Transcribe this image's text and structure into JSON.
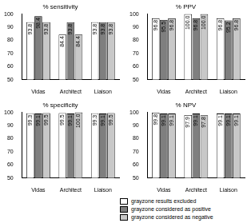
{
  "chart_data": [
    {
      "type": "bar",
      "title": "% sensitivity",
      "categories": [
        "Vidas",
        "Architect",
        "Liaison"
      ],
      "series": [
        {
          "name": "grayzone results excluded",
          "color": "#ffffff",
          "values": [
            93.8,
            84.4,
            93.8
          ],
          "value_labels": [
            "93.8",
            "84.4",
            "93.8"
          ]
        },
        {
          "name": "grayzone considered as positive",
          "color": "#7f7f7f",
          "values": [
            98.4,
            93.8,
            93.8
          ],
          "value_labels": [
            "98.4",
            "93.8",
            "93.8"
          ]
        },
        {
          "name": "grayzone considered as negative",
          "color": "#c8c8c8",
          "values": [
            93.8,
            84.4,
            93.8
          ],
          "value_labels": [
            "93.8",
            "84.4",
            "93.8"
          ]
        }
      ],
      "ylim": [
        50,
        100
      ],
      "yticks": [
        50,
        60,
        70,
        80,
        90,
        100
      ],
      "grid": false,
      "data_labels": true
    },
    {
      "type": "bar",
      "title": "% PPV",
      "categories": [
        "Vidas",
        "Architect",
        "Liaison"
      ],
      "series": [
        {
          "name": "grayzone results excluded",
          "color": "#ffffff",
          "values": [
            96.8,
            100,
            96.8
          ],
          "value_labels": [
            "96.8",
            "100.0",
            "96.8"
          ]
        },
        {
          "name": "grayzone considered as positive",
          "color": "#7f7f7f",
          "values": [
            95.5,
            96.8,
            95.2
          ],
          "value_labels": [
            "95.5",
            "96.8",
            "95.2"
          ]
        },
        {
          "name": "grayzone considered as negative",
          "color": "#c8c8c8",
          "values": [
            96.8,
            100,
            96.8
          ],
          "value_labels": [
            "96.8",
            "100.0",
            "96.8"
          ]
        }
      ],
      "ylim": [
        50,
        100
      ],
      "yticks": [
        50,
        60,
        70,
        80,
        90,
        100
      ],
      "grid": false,
      "data_labels": true
    },
    {
      "type": "bar",
      "title": "% specificity",
      "categories": [
        "Vidas",
        "Architect",
        "Liaison"
      ],
      "series": [
        {
          "name": "grayzone results excluded",
          "color": "#ffffff",
          "values": [
            99.3,
            99.5,
            99.3
          ],
          "value_labels": [
            "99.3",
            "99.5",
            "99.3"
          ]
        },
        {
          "name": "grayzone considered as positive",
          "color": "#7f7f7f",
          "values": [
            99.1,
            99.1,
            99.1
          ],
          "value_labels": [
            "99.1",
            "99.1",
            "99.1"
          ]
        },
        {
          "name": "grayzone considered as negative",
          "color": "#c8c8c8",
          "values": [
            99.5,
            100,
            99.5
          ],
          "value_labels": [
            "99.5",
            "100.0",
            "99.5"
          ]
        }
      ],
      "ylim": [
        50,
        100
      ],
      "yticks": [
        50,
        60,
        70,
        80,
        90,
        100
      ],
      "grid": false,
      "data_labels": true
    },
    {
      "type": "bar",
      "title": "% NPV",
      "categories": [
        "Vidas",
        "Architect",
        "Liaison"
      ],
      "series": [
        {
          "name": "grayzone results excluded",
          "color": "#ffffff",
          "values": [
            99.8,
            97.9,
            99.1
          ],
          "value_labels": [
            "99.8",
            "97.9",
            "99.1"
          ]
        },
        {
          "name": "grayzone considered as positive",
          "color": "#7f7f7f",
          "values": [
            99.1,
            99.1,
            99.1
          ],
          "value_labels": [
            "99.1",
            "99.1",
            "99.1"
          ]
        },
        {
          "name": "grayzone considered as negative",
          "color": "#c8c8c8",
          "values": [
            99.1,
            97.8,
            99.1
          ],
          "value_labels": [
            "99.1",
            "97.8",
            "99.1"
          ]
        }
      ],
      "ylim": [
        50,
        100
      ],
      "yticks": [
        50,
        60,
        70,
        80,
        90,
        100
      ],
      "grid": false,
      "data_labels": true,
      "legend": "bottom-right"
    }
  ]
}
